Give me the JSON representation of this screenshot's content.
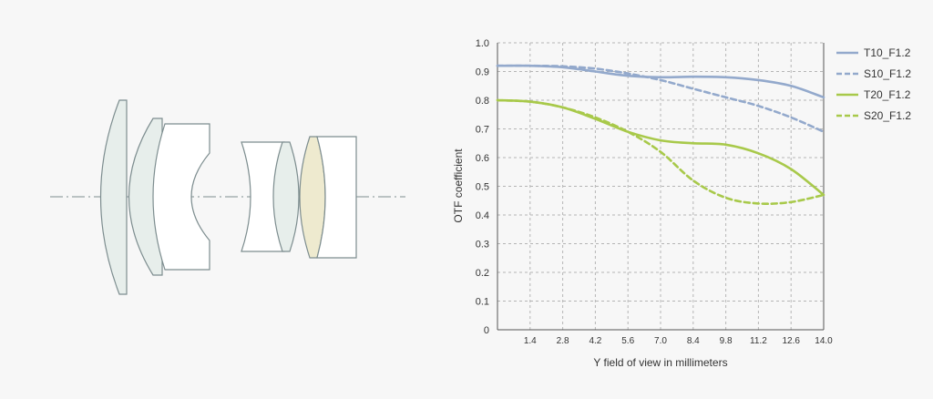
{
  "colors": {
    "background": "#f7f7f7",
    "grid": "#b5b5b5",
    "axis": "#555555",
    "blue": "#93a9cc",
    "green": "#a8c94a",
    "lens_stroke": "#7d8d8f",
    "lens_fill_white": "#ffffff",
    "lens_fill_tint": "#e7eeeb",
    "lens_fill_yellow": "#eeeacf"
  },
  "diagram": {
    "description_icon": "lens-cross-section"
  },
  "chart_data": {
    "type": "line",
    "xlabel": "Y field of view in millimeters",
    "ylabel": "OTF coefficient",
    "xlim": [
      0,
      14.0
    ],
    "ylim": [
      0,
      1.0
    ],
    "xticks": [
      "1.4",
      "2.8",
      "4.2",
      "5.6",
      "7.0",
      "8.4",
      "9.8",
      "11.2",
      "12.6",
      "14.0"
    ],
    "yticks": [
      "0",
      "0.1",
      "0.2",
      "0.3",
      "0.4",
      "0.5",
      "0.6",
      "0.7",
      "0.8",
      "0.9",
      "1.0"
    ],
    "grid": true,
    "legend_position": "right",
    "series": [
      {
        "name": "T10_F1.2",
        "color": "#93a9cc",
        "dashed": false,
        "x": [
          0,
          1.4,
          2.8,
          4.2,
          5.6,
          7.0,
          8.4,
          9.8,
          11.2,
          12.6,
          14.0
        ],
        "y": [
          0.92,
          0.92,
          0.915,
          0.9,
          0.885,
          0.88,
          0.882,
          0.88,
          0.87,
          0.85,
          0.81
        ]
      },
      {
        "name": "S10_F1.2",
        "color": "#93a9cc",
        "dashed": true,
        "x": [
          0,
          1.4,
          2.8,
          4.2,
          5.6,
          7.0,
          8.4,
          9.8,
          11.2,
          12.6,
          14.0
        ],
        "y": [
          0.92,
          0.92,
          0.918,
          0.91,
          0.893,
          0.87,
          0.84,
          0.81,
          0.78,
          0.74,
          0.69
        ]
      },
      {
        "name": "T20_F1.2",
        "color": "#a8c94a",
        "dashed": false,
        "x": [
          0,
          1.4,
          2.8,
          4.2,
          5.6,
          7.0,
          8.4,
          9.8,
          11.2,
          12.6,
          14.0
        ],
        "y": [
          0.8,
          0.795,
          0.775,
          0.735,
          0.69,
          0.66,
          0.65,
          0.645,
          0.615,
          0.56,
          0.47
        ]
      },
      {
        "name": "S20_F1.2",
        "color": "#a8c94a",
        "dashed": true,
        "x": [
          0,
          1.4,
          2.8,
          4.2,
          5.6,
          7.0,
          8.4,
          9.8,
          11.2,
          12.6,
          14.0
        ],
        "y": [
          0.8,
          0.795,
          0.775,
          0.74,
          0.69,
          0.62,
          0.52,
          0.46,
          0.44,
          0.445,
          0.47
        ]
      }
    ]
  }
}
